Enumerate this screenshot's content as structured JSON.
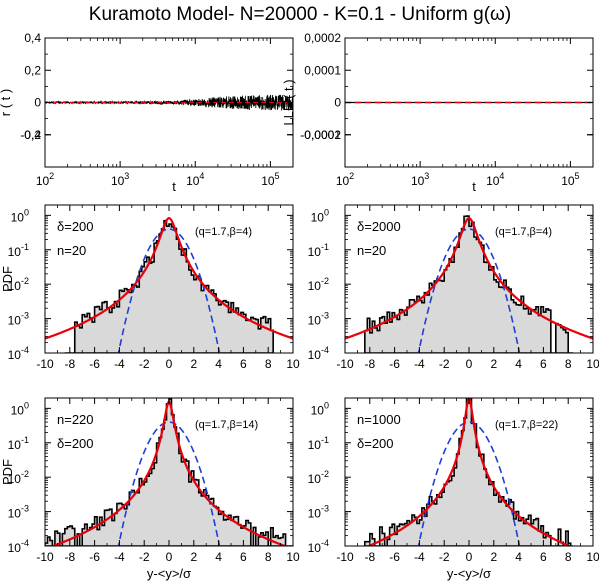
{
  "figure": {
    "title": "Kuramoto Model- N=20000 - K=0.1 - Uniform g(ω)"
  },
  "colors": {
    "data": "#000000",
    "fit_red": "#e8000b",
    "gauss_blue": "#1f3fd6",
    "hist_fill": "#d9d9d9"
  },
  "chart_data": [
    {
      "id": "r_t",
      "type": "line",
      "xscale": "log",
      "xlim": [
        100,
        200000
      ],
      "ylim": [
        -0.4,
        0.4
      ],
      "xlabel": "t",
      "ylabel": "r ( t )",
      "xticks": [
        100,
        1000,
        10000,
        100000
      ],
      "xtick_labels": [
        [
          "10",
          "2"
        ],
        [
          "10",
          "3"
        ],
        [
          "10",
          "4"
        ],
        [
          "10",
          "5"
        ]
      ],
      "yticks": [
        -0.4,
        -0.2,
        0,
        0.2,
        0.4
      ],
      "ytick_labels": [
        "-0,4",
        "-0,2",
        "0",
        "0,2",
        "0,4"
      ],
      "series": [
        {
          "color": "#000000",
          "mean": 0,
          "envelope_t": [
            100,
            1000,
            5000,
            10000,
            20000,
            50000,
            100000,
            200000
          ],
          "envelope_amp": [
            0.005,
            0.006,
            0.01,
            0.02,
            0.035,
            0.045,
            0.05,
            0.05
          ]
        },
        {
          "color": "#e8000b",
          "y": 0
        }
      ]
    },
    {
      "id": "lle_t",
      "type": "line",
      "xscale": "log",
      "xlim": [
        100,
        200000
      ],
      "ylim": [
        -0.0002,
        0.0002
      ],
      "xlabel": "t",
      "ylabel": "LLE ( t )",
      "xticks": [
        100,
        1000,
        10000,
        100000
      ],
      "xtick_labels": [
        [
          "10",
          "2"
        ],
        [
          "10",
          "3"
        ],
        [
          "10",
          "4"
        ],
        [
          "10",
          "5"
        ]
      ],
      "yticks": [
        -0.0002,
        -0.0001,
        0,
        0.0001,
        0.0002
      ],
      "ytick_labels": [
        "-0,0002",
        "-0,0001",
        "0",
        "0,0001",
        "0,0002"
      ],
      "series": [
        {
          "color": "#e8000b",
          "y": 0
        },
        {
          "color": "#000000",
          "y": 0
        }
      ]
    },
    {
      "id": "pdf_a",
      "type": "area",
      "yscale": "log",
      "xlim": [
        -10,
        10
      ],
      "ylim": [
        0.0001,
        2
      ],
      "ylabel": "PDF",
      "xlabel": "",
      "xticks": [
        -10,
        -8,
        -6,
        -4,
        -2,
        0,
        2,
        4,
        6,
        8,
        10
      ],
      "xtick_labels": [
        "-10",
        "-8",
        "-6",
        "-4",
        "-2",
        "0",
        "2",
        "4",
        "6",
        "8",
        "10"
      ],
      "yticks": [
        0.0001,
        0.001,
        0.01,
        0.1,
        1
      ],
      "ytick_labels": [
        [
          "10",
          "-4"
        ],
        [
          "10",
          "-3"
        ],
        [
          "10",
          "-2"
        ],
        [
          "10",
          "-1"
        ],
        [
          "10",
          "0"
        ]
      ],
      "annotations": [
        "δ=200",
        "n=20"
      ],
      "fit_label": "(q=1.7,β=4)",
      "q": 1.7,
      "beta": 4,
      "histogram_range": [
        -8.4,
        8.4
      ],
      "histogram_density": 1,
      "series": [
        {
          "style": "histogram",
          "color": "#000000"
        },
        {
          "style": "q-gaussian",
          "color": "#e8000b"
        },
        {
          "style": "gaussian",
          "color": "#1f3fd6"
        }
      ]
    },
    {
      "id": "pdf_b",
      "type": "area",
      "yscale": "log",
      "xlim": [
        -10,
        10
      ],
      "ylim": [
        0.0001,
        2
      ],
      "ylabel": "",
      "xlabel": "",
      "xticks": [
        -10,
        -8,
        -6,
        -4,
        -2,
        0,
        2,
        4,
        6,
        8,
        10
      ],
      "xtick_labels": [
        "-10",
        "-8",
        "-6",
        "-4",
        "-2",
        "0",
        "2",
        "4",
        "6",
        "8",
        "10"
      ],
      "yticks": [
        0.0001,
        0.001,
        0.01,
        0.1,
        1
      ],
      "ytick_labels": [
        [
          "10",
          "-4"
        ],
        [
          "10",
          "-3"
        ],
        [
          "10",
          "-2"
        ],
        [
          "10",
          "-1"
        ],
        [
          "10",
          "0"
        ]
      ],
      "annotations": [
        "δ=2000",
        "n=20"
      ],
      "fit_label": "(q=1.7,β=4)",
      "q": 1.7,
      "beta": 4,
      "histogram_range": [
        -8.4,
        8.4
      ],
      "histogram_density": 1,
      "series": [
        {
          "style": "histogram",
          "color": "#000000"
        },
        {
          "style": "q-gaussian",
          "color": "#e8000b"
        },
        {
          "style": "gaussian",
          "color": "#1f3fd6"
        }
      ]
    },
    {
      "id": "pdf_c",
      "type": "area",
      "yscale": "log",
      "xlim": [
        -10,
        10
      ],
      "ylim": [
        0.0001,
        2
      ],
      "ylabel": "PDF",
      "xlabel": "y-<y>/σ",
      "xticks": [
        -10,
        -8,
        -6,
        -4,
        -2,
        0,
        2,
        4,
        6,
        8,
        10
      ],
      "xtick_labels": [
        "-10",
        "-8",
        "-6",
        "-4",
        "-2",
        "0",
        "2",
        "4",
        "6",
        "8",
        "10"
      ],
      "yticks": [
        0.0001,
        0.001,
        0.01,
        0.1,
        1
      ],
      "ytick_labels": [
        [
          "10",
          "-4"
        ],
        [
          "10",
          "-3"
        ],
        [
          "10",
          "-2"
        ],
        [
          "10",
          "-1"
        ],
        [
          "10",
          "0"
        ]
      ],
      "annotations": [
        "n=220",
        "δ=200"
      ],
      "fit_label": "(q=1.7,β=14)",
      "q": 1.7,
      "beta": 14,
      "histogram_range": [
        -10,
        10
      ],
      "histogram_density": 0.55,
      "series": [
        {
          "style": "histogram",
          "color": "#000000"
        },
        {
          "style": "q-gaussian",
          "color": "#e8000b"
        },
        {
          "style": "gaussian",
          "color": "#1f3fd6"
        }
      ]
    },
    {
      "id": "pdf_d",
      "type": "area",
      "yscale": "log",
      "xlim": [
        -10,
        10
      ],
      "ylim": [
        0.0001,
        2
      ],
      "ylabel": "",
      "xlabel": "y-<y>/σ",
      "xticks": [
        -10,
        -8,
        -6,
        -4,
        -2,
        0,
        2,
        4,
        6,
        8,
        10
      ],
      "xtick_labels": [
        "-10",
        "-8",
        "-6",
        "-4",
        "-2",
        "0",
        "2",
        "4",
        "6",
        "8",
        "10"
      ],
      "yticks": [
        0.0001,
        0.001,
        0.01,
        0.1,
        1
      ],
      "ytick_labels": [
        [
          "10",
          "-4"
        ],
        [
          "10",
          "-3"
        ],
        [
          "10",
          "-2"
        ],
        [
          "10",
          "-1"
        ],
        [
          "10",
          "0"
        ]
      ],
      "annotations": [
        "n=1000",
        "δ=200"
      ],
      "fit_label": "(q=1.7,β=22)",
      "q": 1.7,
      "beta": 22,
      "histogram_range": [
        -8.4,
        8.4
      ],
      "histogram_density": 0.6,
      "series": [
        {
          "style": "histogram",
          "color": "#000000"
        },
        {
          "style": "q-gaussian",
          "color": "#e8000b"
        },
        {
          "style": "gaussian",
          "color": "#1f3fd6"
        }
      ]
    }
  ]
}
